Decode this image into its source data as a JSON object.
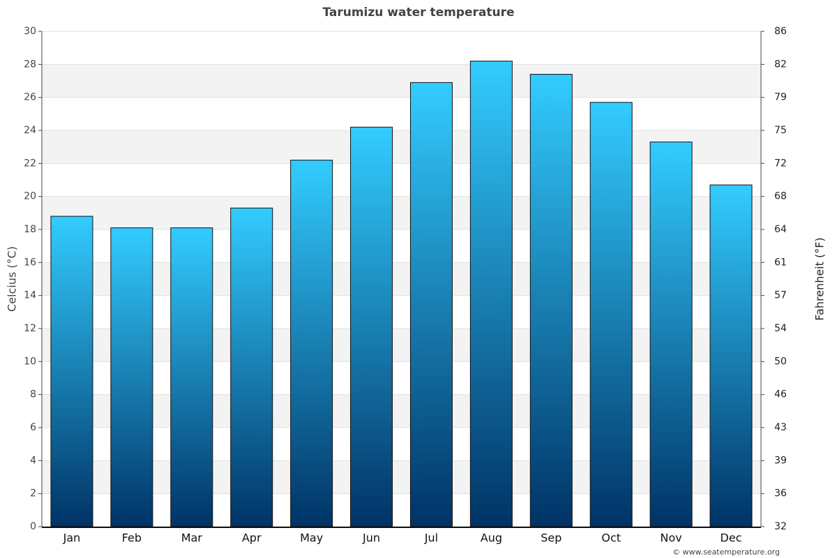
{
  "chart_data": {
    "type": "bar",
    "title": "Tarumizu water temperature",
    "categories": [
      "Jan",
      "Feb",
      "Mar",
      "Apr",
      "May",
      "Jun",
      "Jul",
      "Aug",
      "Sep",
      "Oct",
      "Nov",
      "Dec"
    ],
    "series": [
      {
        "name": "Water temperature",
        "gradient": [
          "#33ccff",
          "#003366"
        ],
        "values": [
          18.8,
          18.1,
          18.1,
          19.3,
          22.2,
          24.2,
          26.9,
          28.2,
          27.4,
          25.7,
          23.3,
          20.7
        ]
      }
    ],
    "ylabel": "Celcius (°C)",
    "ylim": [
      0,
      30
    ],
    "yticks": [
      0,
      2,
      4,
      6,
      8,
      10,
      12,
      14,
      16,
      18,
      20,
      22,
      24,
      26,
      28,
      30
    ],
    "y2label": "Fahrenheit (°F)",
    "y2lim": [
      32,
      86
    ],
    "y2ticks": [
      32,
      {
        "value": 35.6,
        "label": "36"
      },
      {
        "value": 39.2,
        "label": "39"
      },
      {
        "value": 42.8,
        "label": "43"
      },
      {
        "value": 46.4,
        "label": "46"
      },
      50,
      {
        "value": 53.6,
        "label": "54"
      },
      {
        "value": 57.2,
        "label": "57"
      },
      {
        "value": 60.8,
        "label": "61"
      },
      {
        "value": 64.4,
        "label": "64"
      },
      68,
      {
        "value": 71.6,
        "label": "72"
      },
      {
        "value": 75.2,
        "label": "75"
      },
      {
        "value": 78.8,
        "label": "79"
      },
      {
        "value": 82.4,
        "label": "82"
      },
      86
    ],
    "grid": true,
    "credit": "© www.seatemperature.org"
  }
}
